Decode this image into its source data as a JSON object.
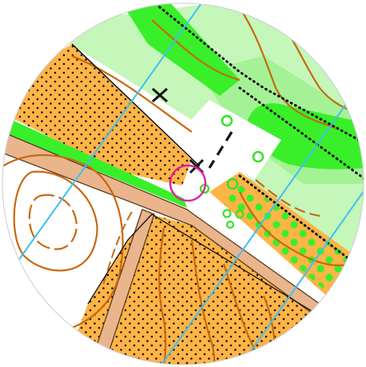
{
  "map": {
    "kind": "orienteering-map-circular-excerpt",
    "colors": {
      "background": "#ffffff",
      "rough_open": "#ffb446",
      "light_green": "#c4f7b9",
      "medium_green": "#8cee7a",
      "dark_green": "#39ef2a",
      "contour": "#c8690e",
      "road_fill": "#eab58c",
      "road_edge": "#5a3b1c",
      "north_line": "#3fbff0",
      "control_circle": "#e0219b",
      "feature_circle": "#3be02a",
      "black": "#111111"
    },
    "symbols": {
      "control": "control-circle",
      "cross_features": [
        "cross-marker",
        "cross-marker"
      ],
      "green_circles": 6,
      "dashed_path": "black-dashed-trail"
    }
  }
}
